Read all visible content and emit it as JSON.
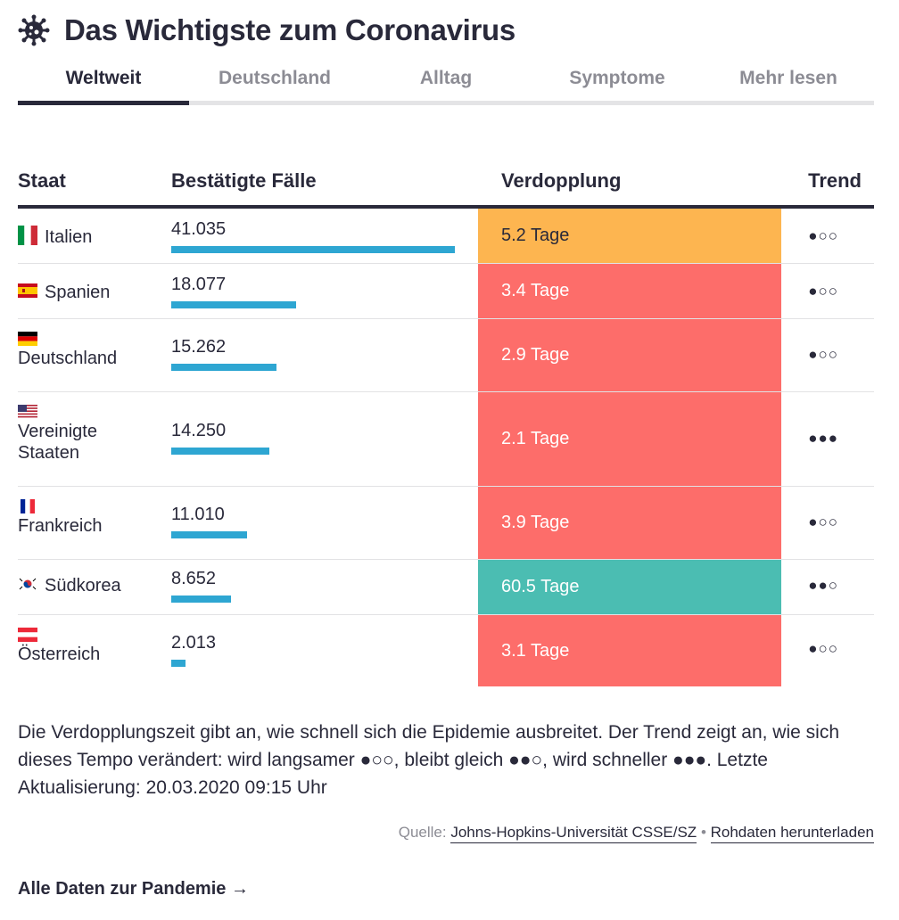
{
  "header": {
    "title": "Das Wichtigste zum Coronavirus",
    "icon": "virus-icon"
  },
  "tabs": [
    {
      "label": "Weltweit",
      "active": true
    },
    {
      "label": "Deutschland",
      "active": false
    },
    {
      "label": "Alltag",
      "active": false
    },
    {
      "label": "Symptome",
      "active": false
    },
    {
      "label": "Mehr lesen",
      "active": false
    }
  ],
  "table": {
    "headers": {
      "country": "Staat",
      "cases": "Bestätigte Fälle",
      "doubling": "Verdopplung",
      "trend": "Trend"
    },
    "rows": [
      {
        "country": "Italien",
        "flag": "flag-it-icon",
        "cases": "41.035",
        "cases_value": 41035,
        "doubling": "5.2 Tage",
        "doubling_status": "orange",
        "trend": "●○○"
      },
      {
        "country": "Spanien",
        "flag": "flag-es-icon",
        "cases": "18.077",
        "cases_value": 18077,
        "doubling": "3.4 Tage",
        "doubling_status": "red",
        "trend": "●○○"
      },
      {
        "country": "Deutschland",
        "flag": "flag-de-icon",
        "cases": "15.262",
        "cases_value": 15262,
        "doubling": "2.9 Tage",
        "doubling_status": "red",
        "trend": "●○○"
      },
      {
        "country": "Vereinigte Staaten",
        "flag": "flag-us-icon",
        "cases": "14.250",
        "cases_value": 14250,
        "doubling": "2.1 Tage",
        "doubling_status": "red",
        "trend": "●●●"
      },
      {
        "country": "Frankreich",
        "flag": "flag-fr-icon",
        "cases": "11.010",
        "cases_value": 11010,
        "doubling": "3.9 Tage",
        "doubling_status": "red",
        "trend": "●○○"
      },
      {
        "country": "Südkorea",
        "flag": "flag-kr-icon",
        "cases": "8.652",
        "cases_value": 8652,
        "doubling": "60.5 Tage",
        "doubling_status": "teal",
        "trend": "●●○"
      },
      {
        "country": "Österreich",
        "flag": "flag-at-icon",
        "cases": "2.013",
        "cases_value": 2013,
        "doubling": "3.1 Tage",
        "doubling_status": "red",
        "trend": "●○○"
      }
    ]
  },
  "colors": {
    "bar": "#2ea6d2",
    "orange": "#fdb550",
    "red": "#fd6d6a",
    "teal": "#4bbdb2",
    "text": "#29293a"
  },
  "note": "Die Verdopplungszeit gibt an, wie schnell sich die Epidemie ausbreitet. Der Trend zeigt an, wie sich dieses Tempo verändert: wird langsamer ●○○, bleibt gleich ●●○, wird schneller ●●●. Letzte Aktualisierung: 20.03.2020 09:15 Uhr",
  "source": {
    "prefix": "Quelle:",
    "link1": "Johns-Hopkins-Universität CSSE/SZ",
    "separator": "•",
    "link2": "Rohdaten herunterladen"
  },
  "more_link": "Alle Daten zur Pandemie →"
}
